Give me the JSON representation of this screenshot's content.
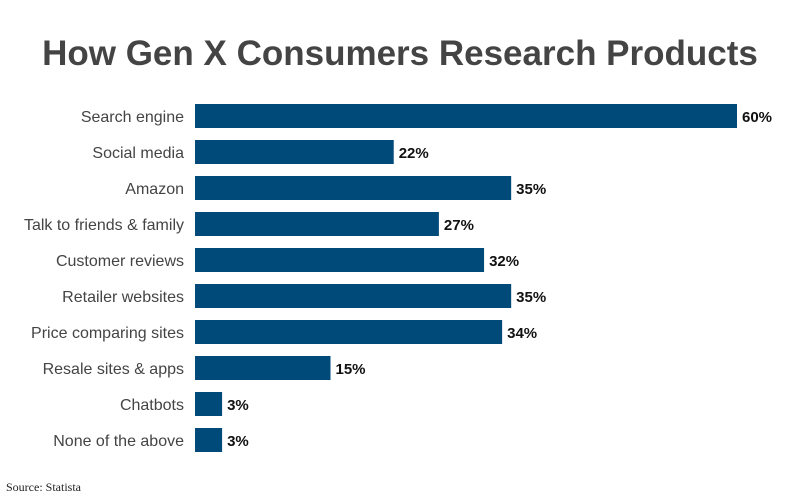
{
  "chart_data": {
    "type": "bar",
    "orientation": "horizontal",
    "title": "How Gen X Consumers Research Products",
    "categories": [
      "Search engine",
      "Social media",
      "Amazon",
      "Talk to friends & family",
      "Customer reviews",
      "Retailer websites",
      "Price comparing sites",
      "Resale sites & apps",
      "Chatbots",
      "None of the above"
    ],
    "values": [
      60,
      22,
      35,
      27,
      32,
      35,
      34,
      15,
      3,
      3
    ],
    "value_labels": [
      "60%",
      "22%",
      "35%",
      "27%",
      "32%",
      "35%",
      "34%",
      "15%",
      "3%",
      "3%"
    ],
    "xlim": [
      0,
      60
    ],
    "grid": false,
    "bar_color": "#004a7a",
    "source": "Source: Statista"
  }
}
